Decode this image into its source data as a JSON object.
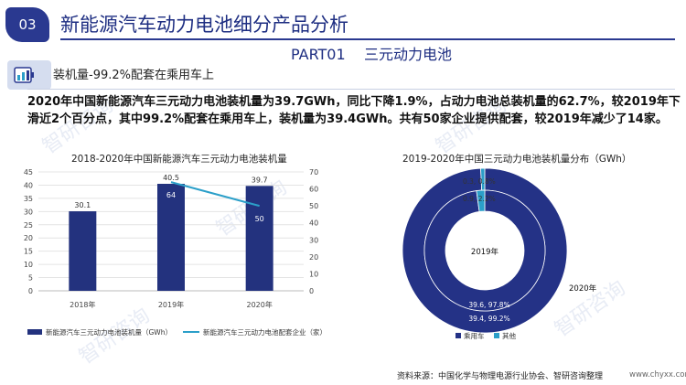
{
  "header": {
    "section_number": "03",
    "title": "新能源汽车动力电池细分产品分析",
    "part": "PART01",
    "part_title": "三元动力电池"
  },
  "subhead": "装机量-99.2%配套在乘用车上",
  "paragraph": "2020年中国新能源汽车三元动力电池装机量为39.7GWh，同比下降1.9%，占动力电池总装机量的62.7%，较2019年下滑近2个百分点，其中99.2%配套在乘用车上，装机量为39.4GWh。共有50家企业提供配套，较2019年减少了14家。",
  "watermark": "智研咨询",
  "source": "资料来源：中国化学与物理电源行业协会、智研咨询整理",
  "website": "www.chyxx.com",
  "colors": {
    "brand": "#2a3990",
    "bar": "#23327e",
    "line": "#2b9fc9",
    "donut_outer": "#243286",
    "donut_small": "#2b9fc9"
  },
  "chart_data": [
    {
      "type": "bar",
      "title": "2018-2020年中国新能源汽车三元动力电池装机量",
      "categories": [
        "2018年",
        "2019年",
        "2020年"
      ],
      "series": [
        {
          "name": "新能源汽车三元动力电池装机量（GWh）",
          "type": "bar",
          "axis": "left",
          "values": [
            30.1,
            40.5,
            39.7
          ],
          "labels": [
            "30.1",
            "40.5",
            "39.7"
          ]
        },
        {
          "name": "新能源汽车三元动力电池配套企业（家）",
          "type": "line",
          "axis": "right",
          "values": [
            null,
            64,
            50
          ],
          "labels": [
            "",
            "64",
            "50"
          ]
        }
      ],
      "ylim_left": [
        0,
        45
      ],
      "yticks_left": [
        "0",
        "5",
        "10",
        "15",
        "20",
        "25",
        "30",
        "35",
        "40",
        "45"
      ],
      "ylim_right": [
        0,
        70
      ],
      "yticks_right": [
        "0",
        "10",
        "20",
        "30",
        "40",
        "50",
        "60",
        "70"
      ],
      "legend_position": "bottom"
    },
    {
      "type": "pie",
      "title": "2019-2020年中国三元动力电池装机量分布（GWh）",
      "rings": [
        {
          "name": "2019年",
          "values": [
            {
              "category": "乘用车",
              "value": 39.6,
              "percent": 97.8,
              "label": "39.6, 97.8%"
            },
            {
              "category": "其他",
              "value": 0.9,
              "percent": 2.2,
              "label": "0.9, 2.2%"
            }
          ]
        },
        {
          "name": "2020年",
          "values": [
            {
              "category": "乘用车",
              "value": 39.4,
              "percent": 99.2,
              "label": "39.4, 99.2%"
            },
            {
              "category": "其他",
              "value": 0.3,
              "percent": 0.8,
              "label": "0.3, 0.8%"
            }
          ]
        }
      ],
      "legend": [
        "乘用车",
        "其他"
      ],
      "legend_position": "bottom"
    }
  ]
}
